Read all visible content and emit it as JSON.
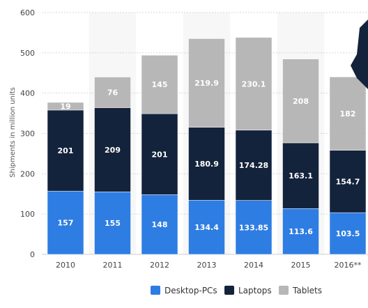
{
  "chart_data": {
    "type": "bar",
    "stacked": true,
    "categories": [
      "2010",
      "2011",
      "2012",
      "2013",
      "2014",
      "2015",
      "2016**"
    ],
    "series": [
      {
        "name": "Desktop-PCs",
        "color": "#2e7de2",
        "label_color": "#ffffff",
        "values": [
          157,
          155,
          148,
          134.4,
          133.85,
          113.6,
          103.5
        ],
        "labels": [
          "157",
          "155",
          "148",
          "134.4",
          "133.85",
          "113.6",
          "103.5"
        ]
      },
      {
        "name": "Laptops",
        "color": "#14233c",
        "label_color": "#ffffff",
        "values": [
          201,
          209,
          201,
          180.9,
          174.28,
          163.1,
          154.7
        ],
        "labels": [
          "201",
          "209",
          "201",
          "180.9",
          "174.28",
          "163.1",
          "154.7"
        ]
      },
      {
        "name": "Tablets",
        "color": "#b7b7b7",
        "label_color": "#ffffff",
        "values": [
          19,
          76,
          145,
          219.9,
          230.1,
          208,
          182
        ],
        "labels": [
          "19",
          "76",
          "145",
          "219.9",
          "230.1",
          "208",
          "182"
        ]
      }
    ],
    "ylabel": "Shipments in million units",
    "ylim": [
      0,
      600
    ],
    "yticks": [
      "0",
      "100",
      "200",
      "300",
      "400",
      "500",
      "600"
    ],
    "grid": true,
    "legend_position": "bottom"
  }
}
